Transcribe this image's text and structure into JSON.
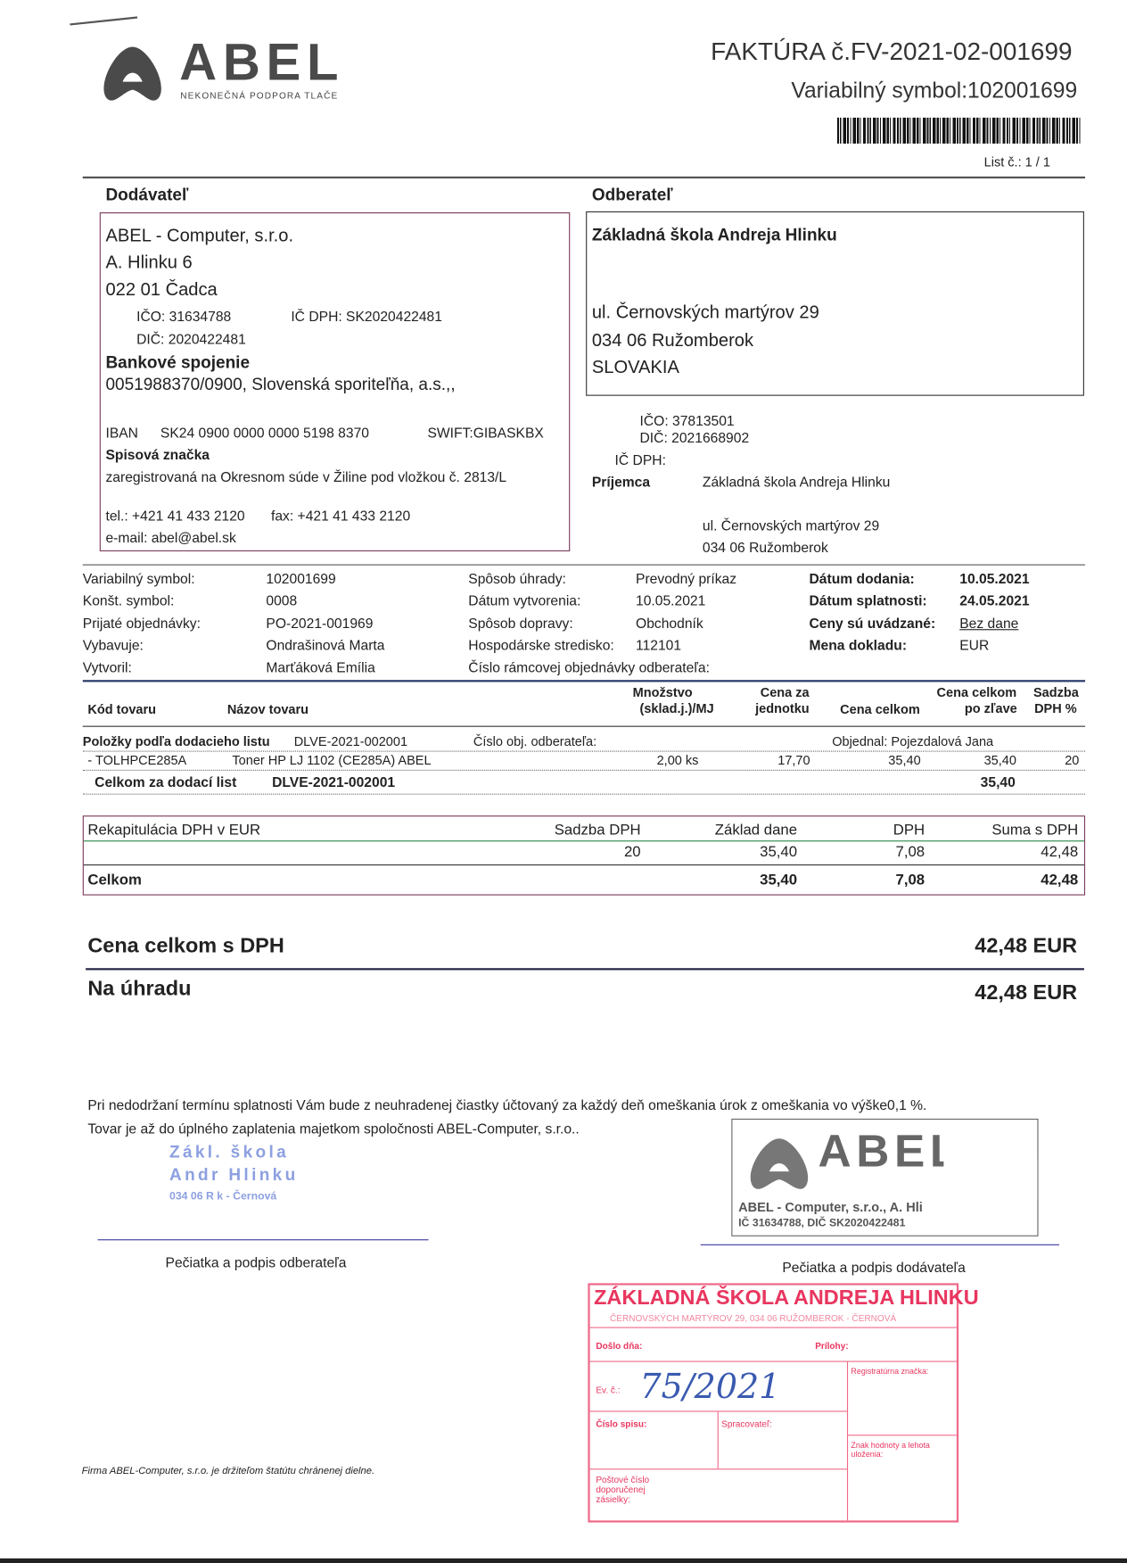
{
  "header": {
    "logo_text": "ABEL",
    "logo_tagline": "NEKONEČNÁ PODPORA TLAČE",
    "title": "FAKTÚRA č.FV-2021-02-001699",
    "variable_symbol": "Variabilný symbol:102001699",
    "page": "List č.: 1 / 1"
  },
  "supplier": {
    "heading": "Dodávateľ",
    "name": "ABEL - Computer, s.r.o.",
    "street": "A. Hlinku 6",
    "city": "022 01 Čadca",
    "ico": "IČO: 31634788",
    "icdph": "IČ DPH: SK2020422481",
    "dic": "DIČ: 2020422481",
    "bank_heading": "Bankové spojenie",
    "bank": "0051988370/0900, Slovenská sporiteľňa, a.s.,,",
    "iban_label": "IBAN",
    "iban": "SK24 0900 0000 0000 5198 8370",
    "swift": "SWIFT:GIBASKBX",
    "reg_heading": "Spisová značka",
    "reg": "zaregistrovaná na Okresnom súde v Žiline pod vložkou č. 2813/L",
    "tel": "tel.: +421 41 433 2120",
    "fax": "fax: +421 41 433 2120",
    "email": "e-mail: abel@abel.sk"
  },
  "customer": {
    "heading": "Odberateľ",
    "name": "Základná škola Andreja Hlinku",
    "street": "ul. Černovských martýrov 29",
    "city": "034 06 Ružomberok",
    "country": "SLOVAKIA",
    "ico": "IČO: 37813501",
    "dic": "DIČ: 2021668902",
    "icdph": "IČ DPH:",
    "recipient_label": "Príjemca",
    "recipient_name": "Základná škola Andreja Hlinku",
    "recipient_street": "ul. Černovských martýrov 29",
    "recipient_city": "034 06 Ružomberok"
  },
  "info": {
    "col1": [
      {
        "label": "Variabilný symbol:",
        "value": "102001699"
      },
      {
        "label": "Konšt. symbol:",
        "value": "0008"
      },
      {
        "label": "Prijaté objednávky:",
        "value": "PO-2021-001969"
      },
      {
        "label": "Vybavuje:",
        "value": "Ondrašinová Marta"
      },
      {
        "label": "Vytvoril:",
        "value": "Marťáková Emília"
      }
    ],
    "col2": [
      {
        "label": "Spôsob úhrady:",
        "value": "Prevodný príkaz"
      },
      {
        "label": "Dátum vytvorenia:",
        "value": "10.05.2021"
      },
      {
        "label": "Spôsob dopravy:",
        "value": "Obchodník"
      },
      {
        "label": "Hospodárske stredisko:",
        "value": "112101"
      },
      {
        "label": "Číslo rámcovej objednávky odberateľa:",
        "value": ""
      }
    ],
    "col3": [
      {
        "label": "Dátum dodania:",
        "value": "10.05.2021"
      },
      {
        "label": "Dátum splatnosti:",
        "value": "24.05.2021"
      },
      {
        "label": "Ceny sú uvádzané:",
        "value": "Bez dane"
      },
      {
        "label": "Mena dokladu:",
        "value": "EUR"
      }
    ]
  },
  "items_table": {
    "headers": {
      "code": "Kód tovaru",
      "name": "Názov tovaru",
      "qty1": "Množstvo",
      "qty2": "(sklad.j.)/MJ",
      "unit1": "Cena za",
      "unit2": "jednotku",
      "total": "Cena celkom",
      "disc1": "Cena celkom",
      "disc2": "po zľave",
      "vat1": "Sadzba",
      "vat2": "DPH %"
    },
    "group": {
      "label": "Položky podľa dodacieho listu",
      "delivery_note": "DLVE-2021-002001",
      "order_label": "Číslo obj. odberateľa:",
      "ordered_by": "Objednal: Pojezdalová Jana"
    },
    "rows": [
      {
        "code": "- TOLHPCE285A",
        "name": "Toner HP LJ 1102  (CE285A) ABEL",
        "qty": "2,00 ks",
        "unit_price": "17,70",
        "total": "35,40",
        "discounted": "35,40",
        "vat": "20"
      }
    ],
    "subtotal": {
      "label": "Celkom za dodací list",
      "delivery_note": "DLVE-2021-002001",
      "value": "35,40"
    }
  },
  "vat_recap": {
    "headers": [
      "Rekapitulácia DPH v EUR",
      "Sadzba DPH",
      "Základ dane",
      "DPH",
      "Suma s DPH"
    ],
    "rows": [
      [
        "",
        "20",
        "35,40",
        "7,08",
        "42,48"
      ]
    ],
    "total": [
      "Celkom",
      "",
      "35,40",
      "7,08",
      "42,48"
    ]
  },
  "totals": {
    "with_vat_label": "Cena celkom s DPH",
    "with_vat": "42,48 EUR",
    "due_label": "Na úhradu",
    "due": "42,48 EUR"
  },
  "footer": {
    "note1": "Pri nedodržaní termínu splatnosti Vám bude z neuhradenej čiastky účtovaný za každý deň omeškania úrok z omeškania vo výške0,1 %.",
    "note2": "Tovar je až do úplného zaplatenia majetkom spoločnosti ABEL-Computer, s.r.o..",
    "customer_sign": "Pečiatka a podpis odberateľa",
    "supplier_sign": "Pečiatka a podpis dodávateľa",
    "disclaimer": "Firma ABEL-Computer, s.r.o. je držiteľom štatútu chránenej dielne."
  },
  "stamps": {
    "blue": [
      "Zákl.   škola",
      "Andr   Hlinku",
      "034 06 R   k - Černová"
    ],
    "abel": {
      "logo": "ABEL",
      "line1": "ABEL - Computer, s.r.o., A. Hli",
      "line2": "IČ 31634788, DIČ SK2020422481"
    },
    "red": {
      "title": "ZÁKLADNÁ ŠKOLA ANDREJA HLINKU",
      "subtitle": "ČERNOVSKÝCH MARTÝROV 29, 034 06 RUŽOMBEROK - ČERNOVÁ",
      "received": "Došlo dňa:",
      "attachments": "Prílohy:",
      "reg_no_label": "Ev. č.:",
      "reg_no": "75/2021",
      "reg_mark": "Registratúrna značka:",
      "file_no": "Číslo spisu:",
      "handler": "Spracovateľ:",
      "retention": "Znak hodnoty a lehota uloženia:",
      "postal": "Poštové číslo doporučenej zásielky:"
    }
  }
}
